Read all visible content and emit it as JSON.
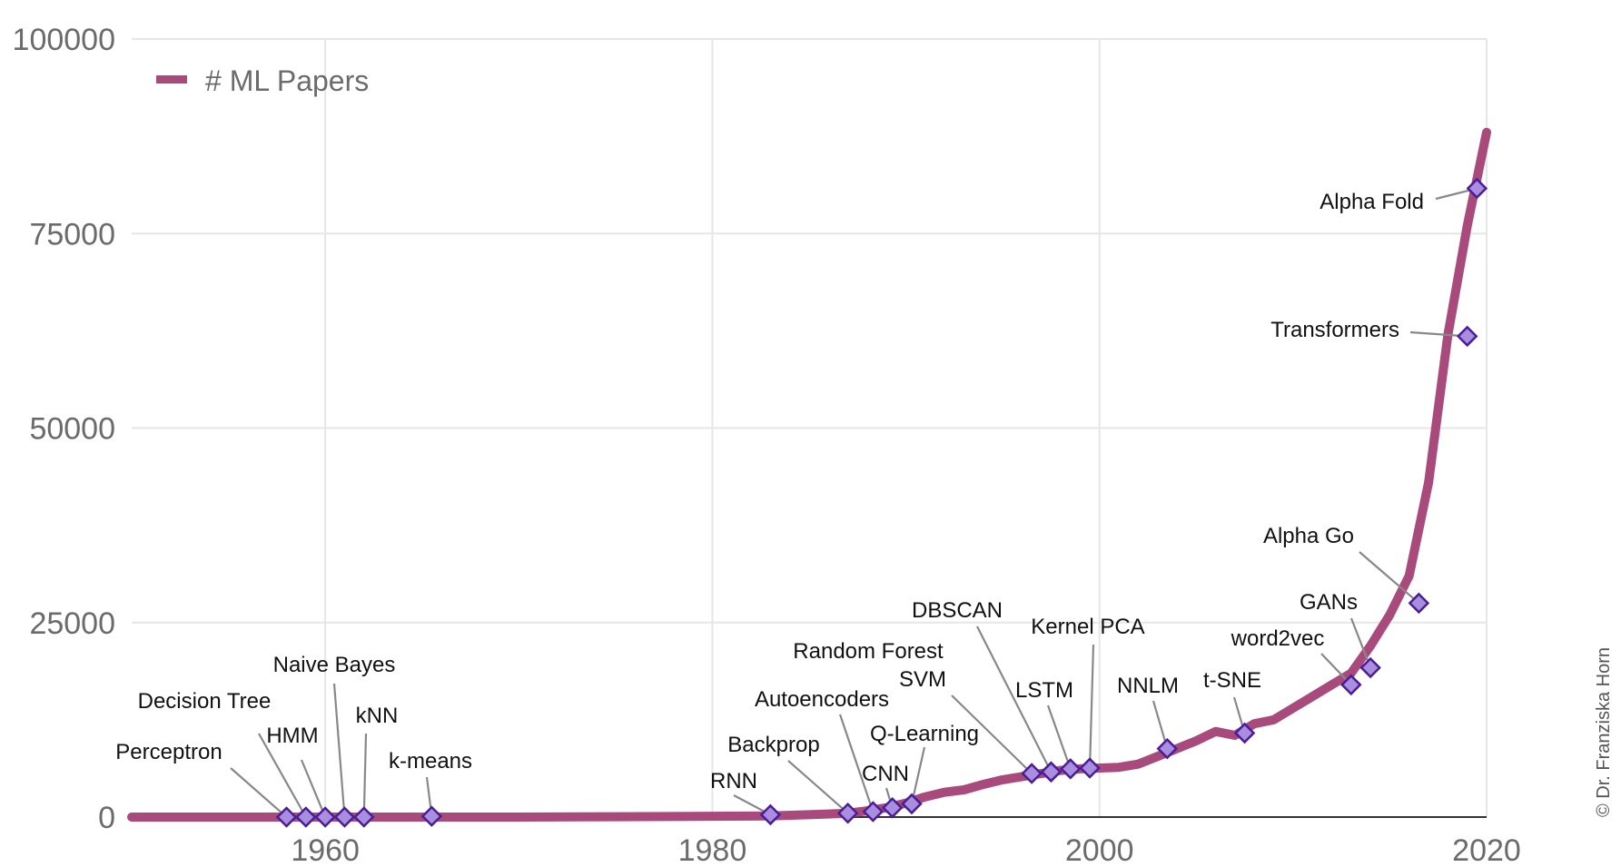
{
  "chart_data": {
    "type": "line",
    "title": "",
    "xlabel": "",
    "ylabel": "",
    "xlim": [
      1950,
      2020
    ],
    "ylim": [
      0,
      100000
    ],
    "x_ticks": [
      1960,
      1980,
      2000,
      2020
    ],
    "y_ticks": [
      0,
      25000,
      50000,
      75000,
      100000
    ],
    "grid": true,
    "legend": {
      "position": "top-left",
      "entries": [
        "# ML Papers"
      ]
    },
    "colors": {
      "line": "#a84a7b",
      "marker_fill": "#a98ee0",
      "marker_edge": "#4a1d96",
      "grid": "#e6e6e6",
      "baseline": "#333333"
    },
    "series": [
      {
        "name": "# ML Papers",
        "x": [
          1950,
          1955,
          1957,
          1958,
          1959,
          1960,
          1961,
          1962,
          1965,
          1970,
          1975,
          1980,
          1983,
          1985,
          1986,
          1987,
          1988,
          1989,
          1990,
          1991,
          1992,
          1993,
          1994,
          1995,
          1996,
          1997,
          1998,
          1999,
          2000,
          2001,
          2002,
          2003,
          2004,
          2005,
          2006,
          2007,
          2008,
          2009,
          2010,
          2011,
          2012,
          2013,
          2014,
          2015,
          2016,
          2017,
          2018,
          2019,
          2020
        ],
        "y": [
          0,
          0,
          0,
          0,
          0,
          0,
          0,
          0,
          0,
          0,
          50,
          100,
          150,
          300,
          400,
          500,
          800,
          1200,
          1800,
          2600,
          3200,
          3500,
          4200,
          4800,
          5200,
          5600,
          6000,
          6200,
          6300,
          6400,
          6800,
          7800,
          8800,
          9800,
          11000,
          10500,
          12000,
          12500,
          14000,
          15500,
          17000,
          18500,
          22000,
          26000,
          31000,
          43000,
          62000,
          76000,
          88000
        ]
      }
    ],
    "annotations": [
      {
        "label": "Perceptron",
        "x": 1958,
        "y": 0
      },
      {
        "label": "Decision Tree",
        "x": 1959,
        "y": 0
      },
      {
        "label": "HMM",
        "x": 1960,
        "y": 0
      },
      {
        "label": "Naive Bayes",
        "x": 1961,
        "y": 0
      },
      {
        "label": "kNN",
        "x": 1962,
        "y": 0
      },
      {
        "label": "k-means",
        "x": 1965.5,
        "y": 100
      },
      {
        "label": "RNN",
        "x": 1983,
        "y": 300
      },
      {
        "label": "Backprop",
        "x": 1987,
        "y": 500
      },
      {
        "label": "Autoencoders",
        "x": 1988.3,
        "y": 700
      },
      {
        "label": "CNN",
        "x": 1989.3,
        "y": 1200
      },
      {
        "label": "Q-Learning",
        "x": 1990.3,
        "y": 1700
      },
      {
        "label": "SVM",
        "x": 1996.5,
        "y": 5600
      },
      {
        "label": "Random Forest",
        "x": 1997.5,
        "y": 5800
      },
      {
        "label": "LSTM",
        "x": 1998.5,
        "y": 6200
      },
      {
        "label": "DBSCAN",
        "x": 1997.5,
        "y": 5800
      },
      {
        "label": "Kernel PCA",
        "x": 1999.5,
        "y": 6300
      },
      {
        "label": "NNLM",
        "x": 2003.5,
        "y": 8800
      },
      {
        "label": "t-SNE",
        "x": 2007.5,
        "y": 10800
      },
      {
        "label": "word2vec",
        "x": 2013,
        "y": 17000
      },
      {
        "label": "GANs",
        "x": 2014,
        "y": 19200
      },
      {
        "label": "Alpha Go",
        "x": 2016.5,
        "y": 27500
      },
      {
        "label": "Transformers",
        "x": 2019,
        "y": 61800
      },
      {
        "label": "Alpha Fold",
        "x": 2019.5,
        "y": 80800
      }
    ]
  },
  "credit": "© Dr. Franziska Horn"
}
